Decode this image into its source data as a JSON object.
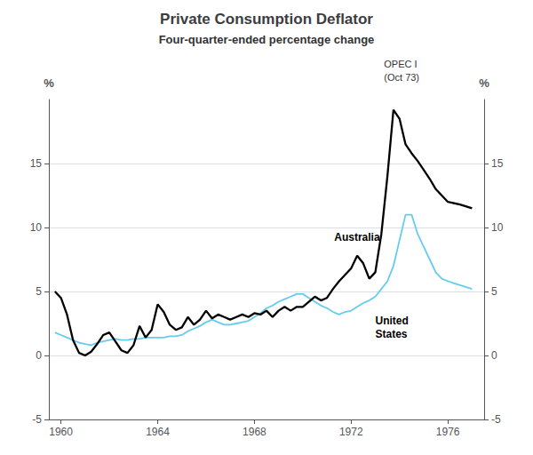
{
  "chart_data": {
    "type": "line",
    "title": "Private Consumption Deflator",
    "subtitle": "Four-quarter-ended percentage change",
    "ylabel": "%",
    "y2label": "%",
    "annotations": [
      {
        "text": "Australia",
        "x": 1971.3,
        "y": 8.7
      },
      {
        "text": "United\nStates",
        "x": 1973.0,
        "y": 3.2
      },
      {
        "text": "OPEC I\n(Oct 73)"
      }
    ],
    "xlim": [
      1959.5,
      1977.5
    ],
    "xticks": [
      1960,
      1964,
      1968,
      1972,
      1976
    ],
    "ylim": [
      -5,
      20
    ],
    "yticks": [
      -5,
      0,
      5,
      10,
      15
    ],
    "y2lim": [
      -5,
      20
    ],
    "y2ticks": [
      -5,
      0,
      5,
      10,
      15
    ],
    "grid": true,
    "series": [
      {
        "color": "#000000",
        "x": [
          1959.75,
          1960.0,
          1960.25,
          1960.5,
          1960.75,
          1961.0,
          1961.25,
          1961.5,
          1961.75,
          1962.0,
          1962.25,
          1962.5,
          1962.75,
          1963.0,
          1963.25,
          1963.5,
          1963.75,
          1964.0,
          1964.25,
          1964.5,
          1964.75,
          1965.0,
          1965.25,
          1965.5,
          1965.75,
          1966.0,
          1966.25,
          1966.5,
          1966.75,
          1967.0,
          1967.25,
          1967.5,
          1967.75,
          1968.0,
          1968.25,
          1968.5,
          1968.75,
          1969.0,
          1969.25,
          1969.5,
          1969.75,
          1970.0,
          1970.25,
          1970.5,
          1970.75,
          1971.0,
          1971.25,
          1971.5,
          1971.75,
          1972.0,
          1972.25,
          1972.5,
          1972.75,
          1973.0,
          1973.25,
          1973.5,
          1973.75,
          1974.0,
          1974.25,
          1974.5,
          1974.75,
          1975.0,
          1975.25,
          1975.5,
          1975.75,
          1976.0,
          1976.5,
          1977.0
        ],
        "values": [
          5.0,
          4.5,
          3.2,
          1.2,
          0.2,
          0.0,
          0.3,
          0.9,
          1.6,
          1.8,
          1.1,
          0.4,
          0.2,
          0.8,
          2.3,
          1.4,
          2.0,
          4.0,
          3.4,
          2.4,
          2.0,
          2.2,
          3.0,
          2.4,
          2.8,
          3.5,
          2.9,
          3.2,
          3.0,
          2.8,
          3.0,
          3.2,
          3.0,
          3.3,
          3.2,
          3.5,
          3.0,
          3.5,
          3.8,
          3.5,
          3.8,
          3.8,
          4.2,
          4.6,
          4.3,
          4.5,
          5.2,
          5.8,
          6.3,
          6.8,
          7.8,
          7.2,
          6.0,
          6.5,
          9.5,
          14.0,
          19.2,
          18.5,
          16.5,
          15.8,
          15.2,
          14.5,
          13.8,
          13.0,
          12.5,
          12.0,
          11.8,
          11.5
        ]
      },
      {
        "color": "#66ccee",
        "x": [
          1959.75,
          1960.0,
          1960.25,
          1960.5,
          1960.75,
          1961.0,
          1961.25,
          1961.5,
          1961.75,
          1962.0,
          1962.25,
          1962.5,
          1962.75,
          1963.0,
          1963.25,
          1963.5,
          1963.75,
          1964.0,
          1964.25,
          1964.5,
          1964.75,
          1965.0,
          1965.25,
          1965.5,
          1965.75,
          1966.0,
          1966.25,
          1966.5,
          1966.75,
          1967.0,
          1967.25,
          1967.5,
          1967.75,
          1968.0,
          1968.25,
          1968.5,
          1968.75,
          1969.0,
          1969.25,
          1969.5,
          1969.75,
          1970.0,
          1970.25,
          1970.5,
          1970.75,
          1971.0,
          1971.25,
          1971.5,
          1971.75,
          1972.0,
          1972.25,
          1972.5,
          1972.75,
          1973.0,
          1973.25,
          1973.5,
          1973.75,
          1974.0,
          1974.25,
          1974.5,
          1974.75,
          1975.0,
          1975.25,
          1975.5,
          1975.75,
          1976.0,
          1976.5,
          1977.0
        ],
        "values": [
          1.8,
          1.6,
          1.4,
          1.2,
          1.0,
          0.9,
          0.8,
          1.0,
          1.1,
          1.2,
          1.3,
          1.2,
          1.2,
          1.3,
          1.3,
          1.4,
          1.4,
          1.4,
          1.4,
          1.5,
          1.5,
          1.6,
          1.9,
          2.1,
          2.3,
          2.6,
          2.8,
          2.6,
          2.4,
          2.4,
          2.5,
          2.6,
          2.7,
          3.0,
          3.3,
          3.7,
          3.9,
          4.2,
          4.4,
          4.6,
          4.8,
          4.8,
          4.5,
          4.2,
          3.9,
          3.7,
          3.4,
          3.2,
          3.4,
          3.5,
          3.8,
          4.1,
          4.3,
          4.6,
          5.2,
          5.8,
          7.0,
          9.0,
          11.0,
          11.0,
          9.5,
          8.5,
          7.5,
          6.5,
          6.0,
          5.8,
          5.5,
          5.2
        ]
      }
    ]
  }
}
